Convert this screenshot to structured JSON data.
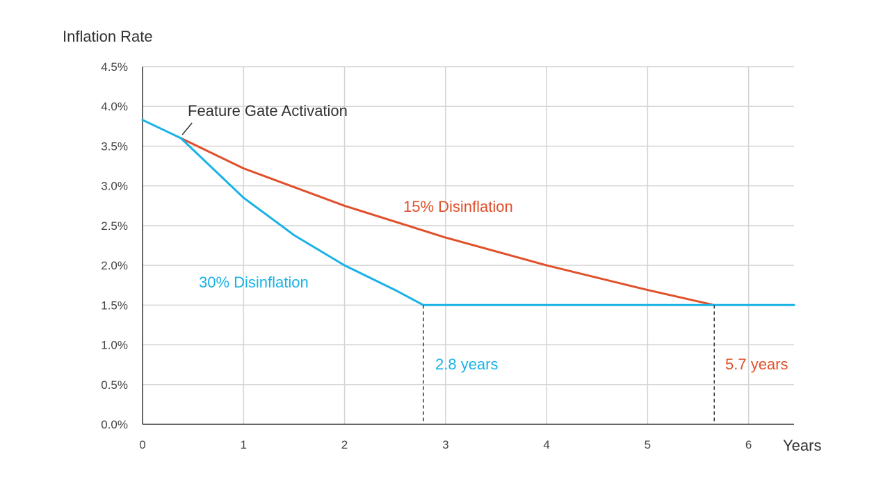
{
  "chart_data": {
    "type": "line",
    "ylabel": "Inflation Rate",
    "xlabel": "Years",
    "xlim": [
      0,
      6.45
    ],
    "ylim": [
      0,
      4.5
    ],
    "x_ticks": [
      "0",
      "1",
      "2",
      "3",
      "4",
      "5",
      "6"
    ],
    "y_ticks": [
      "0.0%",
      "0.5%",
      "1.0%",
      "1.5%",
      "2.0%",
      "2.5%",
      "3.0%",
      "3.5%",
      "4.0%",
      "4.5%"
    ],
    "grid": true,
    "series": [
      {
        "name": "15% Disinflation",
        "color": "#e0502a",
        "x": [
          0.38,
          1,
          2,
          3,
          4,
          5,
          5.66
        ],
        "y": [
          3.6,
          3.22,
          2.75,
          2.35,
          2.0,
          1.69,
          1.5
        ]
      },
      {
        "name": "30% Disinflation",
        "color": "#19b2e6",
        "x": [
          0,
          0.38,
          1,
          1.5,
          2,
          2.5,
          2.78,
          6.45
        ],
        "y": [
          3.83,
          3.6,
          2.85,
          2.38,
          2.0,
          1.69,
          1.5,
          1.5
        ]
      }
    ],
    "annotations": [
      {
        "text": "Feature Gate Activation",
        "x": 0.38,
        "y": 3.6,
        "color": "#333333"
      },
      {
        "text": "15% Disinflation",
        "color": "#e0502a"
      },
      {
        "text": "30% Disinflation",
        "color": "#19b2e6"
      },
      {
        "text": "2.8 years",
        "x": 2.78,
        "color": "#19b2e6"
      },
      {
        "text": "5.7 years",
        "x": 5.66,
        "color": "#e0502a"
      }
    ]
  }
}
